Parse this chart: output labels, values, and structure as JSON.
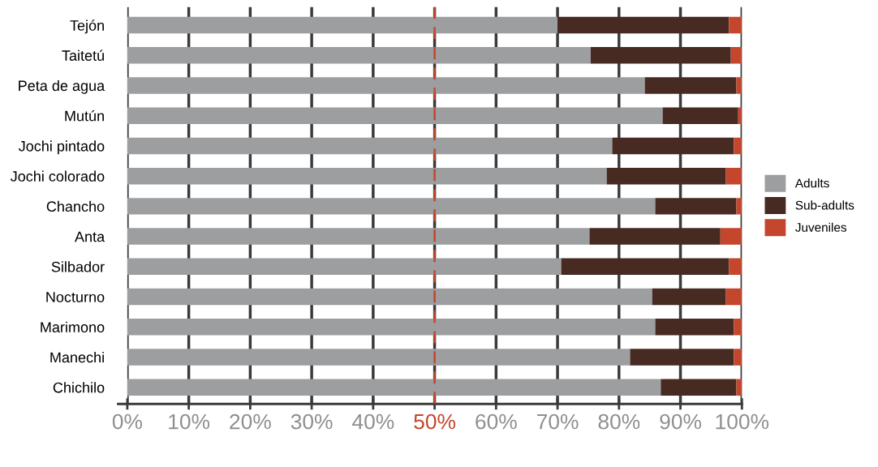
{
  "chart_data": {
    "type": "bar",
    "orientation": "horizontal",
    "stacked": true,
    "categories": [
      "Tejón",
      "Taitetú",
      "Peta de agua",
      "Mutún",
      "Jochi pintado",
      "Jochi colorado",
      "Chancho",
      "Anta",
      "Silbador",
      "Nocturno",
      "Marimono",
      "Manechi",
      "Chichilo"
    ],
    "series": [
      {
        "name": "Adults",
        "color": "#9d9ea0",
        "values": [
          70.0,
          75.4,
          84.2,
          87.1,
          78.9,
          78.0,
          85.9,
          75.2,
          70.6,
          85.4,
          85.9,
          81.8,
          86.8
        ]
      },
      {
        "name": "Sub-adults",
        "color": "#472a22",
        "values": [
          27.9,
          22.8,
          14.9,
          12.3,
          19.8,
          19.4,
          13.2,
          21.3,
          27.3,
          12.0,
          12.8,
          16.9,
          12.3
        ]
      },
      {
        "name": "Juveniles",
        "color": "#c4462c",
        "values": [
          2.1,
          1.8,
          0.9,
          0.6,
          1.3,
          2.6,
          0.9,
          3.5,
          2.1,
          2.6,
          1.3,
          1.3,
          0.9
        ]
      }
    ],
    "xlim": [
      0,
      100
    ],
    "xticks": [
      {
        "value": 0,
        "label": "0%"
      },
      {
        "value": 10,
        "label": "10%"
      },
      {
        "value": 20,
        "label": "20%"
      },
      {
        "value": 30,
        "label": "30%"
      },
      {
        "value": 40,
        "label": "40%"
      },
      {
        "value": 50,
        "label": "50%"
      },
      {
        "value": 60,
        "label": "60%"
      },
      {
        "value": 70,
        "label": "70%"
      },
      {
        "value": 80,
        "label": "80%"
      },
      {
        "value": 90,
        "label": "90%"
      },
      {
        "value": 100,
        "label": "100%"
      }
    ],
    "ref_lines": [
      {
        "axis": "x",
        "value": 50,
        "color": "#c4462c",
        "line_style": "dashed"
      }
    ],
    "grid": "x",
    "legend": "right"
  }
}
